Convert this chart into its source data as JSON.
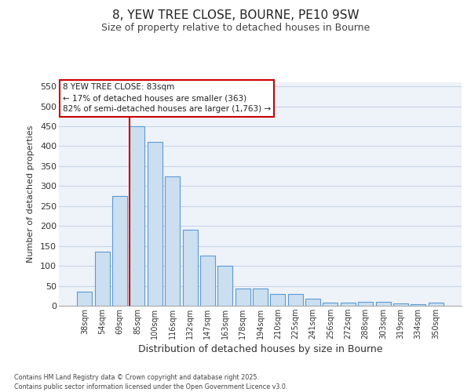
{
  "title_line1": "8, YEW TREE CLOSE, BOURNE, PE10 9SW",
  "title_line2": "Size of property relative to detached houses in Bourne",
  "xlabel": "Distribution of detached houses by size in Bourne",
  "ylabel": "Number of detached properties",
  "categories": [
    "38sqm",
    "54sqm",
    "69sqm",
    "85sqm",
    "100sqm",
    "116sqm",
    "132sqm",
    "147sqm",
    "163sqm",
    "178sqm",
    "194sqm",
    "210sqm",
    "225sqm",
    "241sqm",
    "256sqm",
    "272sqm",
    "288sqm",
    "303sqm",
    "319sqm",
    "334sqm",
    "350sqm"
  ],
  "values": [
    35,
    135,
    275,
    450,
    410,
    325,
    190,
    125,
    100,
    43,
    43,
    30,
    30,
    17,
    7,
    7,
    10,
    10,
    5,
    3,
    7
  ],
  "bar_color": "#ccdff0",
  "bar_edge_color": "#5b9bd5",
  "grid_color": "#c8d4e8",
  "background_color": "#eef2f9",
  "red_line_bin_index": 3,
  "annotation_line1": "8 YEW TREE CLOSE: 83sqm",
  "annotation_line2": "← 17% of detached houses are smaller (363)",
  "annotation_line3": "82% of semi-detached houses are larger (1,763) →",
  "annotation_box_color": "#ffffff",
  "annotation_border_color": "#cc0000",
  "ylim": [
    0,
    560
  ],
  "yticks": [
    0,
    50,
    100,
    150,
    200,
    250,
    300,
    350,
    400,
    450,
    500,
    550
  ],
  "footer_text": "Contains HM Land Registry data © Crown copyright and database right 2025.\nContains public sector information licensed under the Open Government Licence v3.0."
}
